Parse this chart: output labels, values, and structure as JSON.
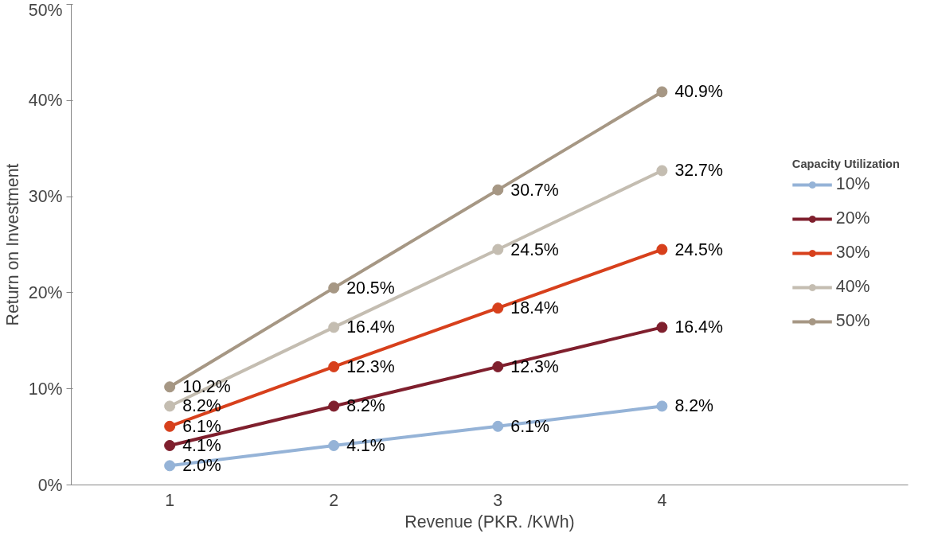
{
  "chart_data": {
    "type": "line",
    "xlabel": "Revenue (PKR. /KWh)",
    "ylabel": "Return on Investment",
    "legend_title": "Capacity Utilization",
    "categories": [
      "1",
      "2",
      "3",
      "4"
    ],
    "ylim": [
      0,
      50
    ],
    "yticks": [
      {
        "value": 0,
        "label": "0%"
      },
      {
        "value": 10,
        "label": "10%"
      },
      {
        "value": 20,
        "label": "20%"
      },
      {
        "value": 30,
        "label": "30%"
      },
      {
        "value": 40,
        "label": "40%"
      },
      {
        "value": 50,
        "label": "50%"
      }
    ],
    "grid": false,
    "legend": "right",
    "marker": "circle",
    "line_style": "solid",
    "series": [
      {
        "name": "10%",
        "color": "#95b3d7",
        "values": [
          2.0,
          4.1,
          6.1,
          8.2
        ],
        "value_labels": [
          "2.0%",
          "4.1%",
          "6.1%",
          "8.2%"
        ]
      },
      {
        "name": "20%",
        "color": "#7f1f2d",
        "values": [
          4.1,
          8.2,
          12.3,
          16.4
        ],
        "value_labels": [
          "4.1%",
          "8.2%",
          "12.3%",
          "16.4%"
        ]
      },
      {
        "name": "30%",
        "color": "#d7401c",
        "values": [
          6.1,
          12.3,
          18.4,
          24.5
        ],
        "value_labels": [
          "6.1%",
          "12.3%",
          "18.4%",
          "24.5%"
        ]
      },
      {
        "name": "40%",
        "color": "#c4bdb1",
        "values": [
          8.2,
          16.4,
          24.5,
          32.7
        ],
        "value_labels": [
          "8.2%",
          "16.4%",
          "24.5%",
          "32.7%"
        ]
      },
      {
        "name": "50%",
        "color": "#a69784",
        "values": [
          10.2,
          20.5,
          30.7,
          40.9
        ],
        "value_labels": [
          "10.2%",
          "20.5%",
          "30.7%",
          "40.9%"
        ]
      }
    ]
  }
}
